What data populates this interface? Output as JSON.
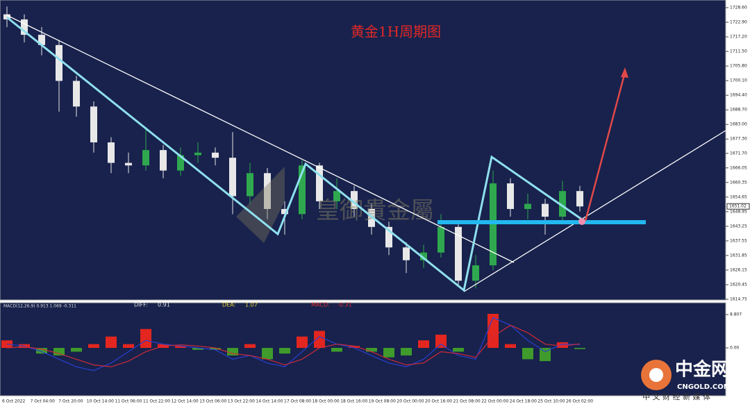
{
  "chart_data": {
    "type": "candlestick",
    "title": "黄金1H周期图",
    "watermark": "皇御貴金屬",
    "open": [
      1726,
      1724,
      1718,
      1714,
      1700,
      1690,
      1676,
      1668,
      1667,
      1673,
      1665,
      1671,
      1672,
      1670,
      1655,
      1664,
      1650,
      1648,
      1667,
      1653,
      1657,
      1650,
      1643,
      1635,
      1630,
      1633,
      1643,
      1622,
      1628,
      1660,
      1650,
      1652,
      1647,
      1657
    ],
    "high": [
      1729,
      1726,
      1721,
      1716,
      1702,
      1692,
      1678,
      1672,
      1682,
      1675,
      1674,
      1676,
      1674,
      1680,
      1668,
      1666,
      1653,
      1669,
      1668,
      1662,
      1659,
      1652,
      1645,
      1637,
      1636,
      1648,
      1644,
      1632,
      1665,
      1662,
      1656,
      1654,
      1661,
      1659
    ],
    "low": [
      1721,
      1715,
      1710,
      1688,
      1686,
      1672,
      1664,
      1664,
      1665,
      1662,
      1663,
      1668,
      1667,
      1648,
      1652,
      1646,
      1640,
      1646,
      1650,
      1650,
      1647,
      1640,
      1632,
      1625,
      1627,
      1631,
      1620,
      1619,
      1626,
      1647,
      1646,
      1640,
      1644,
      1649
    ],
    "close": [
      1724,
      1718,
      1714,
      1700,
      1690,
      1676,
      1668,
      1667,
      1673,
      1665,
      1671,
      1672,
      1670,
      1655,
      1664,
      1650,
      1648,
      1667,
      1653,
      1657,
      1650,
      1643,
      1635,
      1630,
      1633,
      1643,
      1622,
      1628,
      1660,
      1650,
      1652,
      1647,
      1657,
      1651
    ],
    "up_color": "#2fa84f",
    "down_color": "#e8e8e8",
    "ylim": [
      1614.48,
      1731.58
    ],
    "yticks": [
      {
        "value": 1728.6,
        "label": "1728.60"
      },
      {
        "value": 1722.9,
        "label": "1722.90"
      },
      {
        "value": 1717.2,
        "label": "1717.20"
      },
      {
        "value": 1711.5,
        "label": "1711.50"
      },
      {
        "value": 1705.8,
        "label": "1705.80"
      },
      {
        "value": 1700.1,
        "label": "1700.10"
      },
      {
        "value": 1694.4,
        "label": "1694.40"
      },
      {
        "value": 1688.7,
        "label": "1688.70"
      },
      {
        "value": 1683,
        "label": "1683.00"
      },
      {
        "value": 1677.3,
        "label": "1677.30"
      },
      {
        "value": 1671.7,
        "label": "1671.70"
      },
      1666.05,
      1660.35,
      1654.65,
      1648.95,
      1643.25,
      1637.55,
      1631.85,
      1626.15,
      1620.45,
      1614.75
    ],
    "last_price": 1651.02,
    "time_labels": [
      "6 Oct 2022",
      "7 Oct 04:00",
      "7 Oct 20:00",
      "10 Oct 14:00",
      "11 Oct 06:00",
      "11 Oct 22:00",
      "12 Oct 14:00",
      "13 Oct 06:00",
      "13 Oct 22:00",
      "14 Oct 14:00",
      "17 Oct 08:00",
      "18 Oct 00:00",
      "18 Oct 16:00",
      "19 Oct 08:00",
      "20 Oct 00:00",
      "20 Oct 16:00",
      "21 Oct 08:00",
      "22 Oct 00:00",
      "24 Oct 18:00",
      "25 Oct 10:00",
      "26 Oct 02:00"
    ],
    "macd": {
      "header": "MACD(12,26,9) 0.913 1.069 -0.311",
      "diff_label": "DIFF:",
      "diff": 0.91,
      "dea_label": "DEA:",
      "dea": 1.07,
      "macd_label": "MACD:",
      "macd": -0.31,
      "histogram": [
        2,
        1,
        -1.5,
        -2,
        -1,
        1,
        3,
        1,
        5,
        1,
        0.5,
        -0.5,
        -0.5,
        -2,
        1,
        -3,
        -1.5,
        3,
        4.5,
        -1,
        0.5,
        -1,
        -2.5,
        -2,
        2,
        3.5,
        -1,
        0,
        9,
        1,
        -3,
        -3.5,
        1.5,
        -0.3
      ],
      "diff_values": [
        1,
        0.5,
        -1,
        -3,
        -5,
        -6,
        -4,
        -1,
        2,
        1,
        0.5,
        0,
        -0.5,
        -3,
        -2,
        -4,
        -5,
        -1,
        3,
        1,
        0,
        -2,
        -4,
        -5,
        -3,
        1,
        -2,
        -3,
        8,
        6,
        2,
        -1,
        1,
        0.9
      ],
      "dea_values": [
        0,
        0.3,
        -0.3,
        -1.5,
        -3,
        -4.5,
        -5,
        -3.5,
        -1,
        0.5,
        0.8,
        0.5,
        0,
        -1.5,
        -2,
        -3,
        -4.5,
        -3,
        0,
        1,
        0.5,
        -1,
        -3,
        -4.5,
        -4,
        -1,
        -1.5,
        -2.5,
        3,
        6,
        4,
        1,
        0.5,
        1.07
      ],
      "ylim": [
        -12.66,
        11.93
      ],
      "yticks": [
        8.807,
        {
          "value": 0,
          "label": "0.00"
        }
      ],
      "pos_color": "#e3261f",
      "neg_color": "#3f9b2b",
      "diff_color": "#2a3fd0",
      "dea_color": "#d02a3a"
    }
  },
  "logo": {
    "name": "中金网",
    "domain": "CNGOLD.COM",
    "slogan": "中 文 财 经 新 媒 体"
  }
}
